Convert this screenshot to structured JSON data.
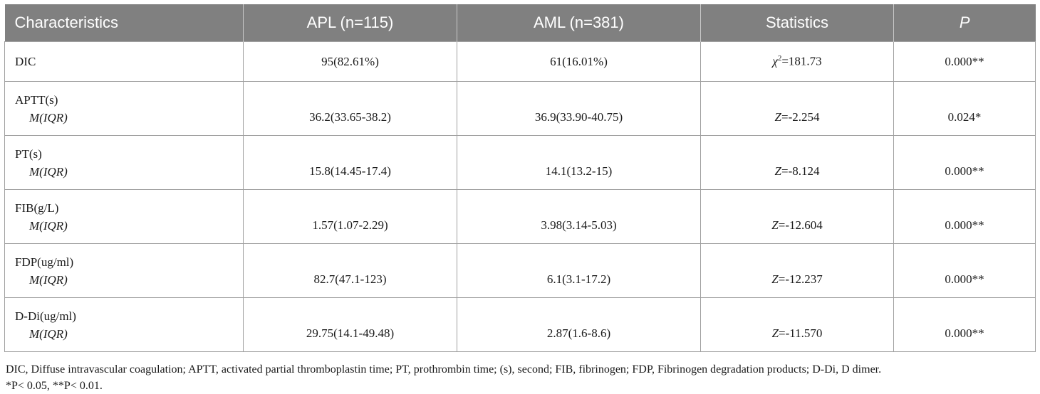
{
  "table": {
    "headers": {
      "characteristics": "Characteristics",
      "apl": "APL (n=115)",
      "aml": "AML (n=381)",
      "statistics": "Statistics",
      "p": "P"
    },
    "dic": {
      "label": "DIC",
      "apl": "95(82.61%)",
      "aml": "61(16.01%)",
      "stat_symbol": "χ",
      "stat_sup": "2",
      "stat_value": "=181.73",
      "p": "0.000**"
    },
    "rows": [
      {
        "label": "APTT(s)",
        "sublabel": "M(IQR)",
        "apl": "36.2(33.65-38.2)",
        "aml": "36.9(33.90-40.75)",
        "stat_var": "Z",
        "stat_value": "=-2.254",
        "p": "0.024*"
      },
      {
        "label": "PT(s)",
        "sublabel": "M(IQR)",
        "apl": "15.8(14.45-17.4)",
        "aml": "14.1(13.2-15)",
        "stat_var": "Z",
        "stat_value": "=-8.124",
        "p": "0.000**"
      },
      {
        "label": "FIB(g/L)",
        "sublabel": "M(IQR)",
        "apl": "1.57(1.07-2.29)",
        "aml": "3.98(3.14-5.03)",
        "stat_var": "Z",
        "stat_value": "=-12.604",
        "p": "0.000**"
      },
      {
        "label": "FDP(ug/ml)",
        "sublabel": "M(IQR)",
        "apl": "82.7(47.1-123)",
        "aml": "6.1(3.1-17.2)",
        "stat_var": "Z",
        "stat_value": "=-12.237",
        "p": "0.000**"
      },
      {
        "label": "D-Di(ug/ml)",
        "sublabel": "M(IQR)",
        "apl": "29.75(14.1-49.48)",
        "aml": "2.87(1.6-8.6)",
        "stat_var": "Z",
        "stat_value": "=-11.570",
        "p": "0.000**"
      }
    ]
  },
  "footnote": {
    "line1": "DIC, Diffuse intravascular coagulation; APTT, activated partial thromboplastin time; PT, prothrombin time; (s), second; FIB, fibrinogen; FDP, Fibrinogen degradation products; D-Di, D dimer.",
    "line2": "*P< 0.05, **P< 0.01."
  }
}
